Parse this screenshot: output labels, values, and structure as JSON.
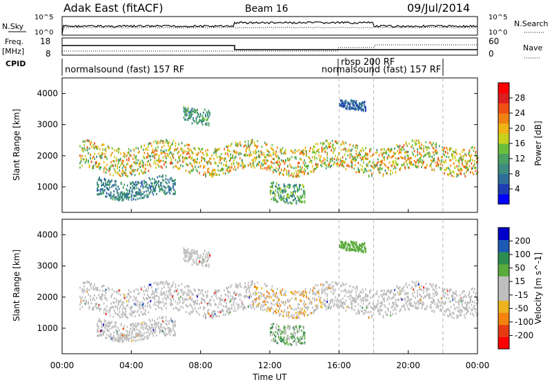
{
  "header": {
    "station": "Adak East (fitACF)",
    "beam": "Beam 16",
    "date": "09/Jul/2014"
  },
  "info_panels": {
    "nsky_label": "N.Sky",
    "nsky_ticks": [
      "10^5",
      "10^0"
    ],
    "nsearch_label": "N.Search",
    "nsearch_ticks": [
      "10^5",
      "10^0"
    ],
    "freq_label": "Freq.",
    "freq_unit": "[MHz]",
    "freq_ticks": [
      "18",
      "8"
    ],
    "nave_label": "Nave",
    "nave_ticks": [
      "60",
      "0"
    ],
    "cpid_label": "CPID",
    "modes": [
      {
        "name": "normalsound (fast) 157 RF",
        "start": "00:00"
      },
      {
        "name": "rbsp 200 RF",
        "start": "16:00"
      },
      {
        "name": "normalsound (fast) 157 RF",
        "start": "18:00"
      }
    ]
  },
  "colors": {
    "power": [
      "#0000ff",
      "#1e3cb4",
      "#2f6e9a",
      "#3c8c82",
      "#4ba064",
      "#6bbf3c",
      "#c8d21e",
      "#f0b414",
      "#f08214",
      "#f05014",
      "#dc1e1e",
      "#ff0000"
    ],
    "velocity": [
      "#ff0000",
      "#e63c14",
      "#f5820f",
      "#ebb41e",
      "#bebebe",
      "#bebebe",
      "#5aaa3c",
      "#2d8c50",
      "#1e5ab4",
      "#0000c8"
    ]
  },
  "chart_data": [
    {
      "type": "heatmap",
      "title": "Power",
      "xlabel": "",
      "ylabel": "Slant Range [km]",
      "xlim": [
        "00:00",
        "24:00"
      ],
      "ylim": [
        180,
        4500
      ],
      "yticks": [
        "1000",
        "2000",
        "3000",
        "4000"
      ],
      "colorbar": {
        "label": "Power [dB]",
        "ticks": [
          "4",
          "8",
          "12",
          "16",
          "20",
          "24",
          "28"
        ],
        "range": [
          0,
          30
        ]
      },
      "echo_bands": [
        {
          "feature": "main band",
          "start": "01:00",
          "end": "24:00",
          "range_km": [
            1500,
            2400
          ],
          "peak_power_db": 24
        },
        {
          "feature": "near band",
          "start": "02:00",
          "end": "06:30",
          "range_km": [
            700,
            1300
          ],
          "peak_power_db": 12
        },
        {
          "feature": "far patch",
          "start": "07:00",
          "end": "08:30",
          "range_km": [
            3100,
            3600
          ],
          "peak_power_db": 14
        },
        {
          "feature": "near patch",
          "start": "12:00",
          "end": "14:00",
          "range_km": [
            600,
            1200
          ],
          "peak_power_db": 16
        },
        {
          "feature": "rbsp patch",
          "start": "16:00",
          "end": "17:30",
          "range_km": [
            3500,
            3800
          ],
          "peak_power_db": 8
        }
      ]
    },
    {
      "type": "heatmap",
      "title": "Velocity",
      "xlabel": "Time UT",
      "ylabel": "Slant Range [km]",
      "xlim": [
        "00:00",
        "24:00"
      ],
      "ylim": [
        180,
        4500
      ],
      "yticks": [
        "1000",
        "2000",
        "3000",
        "4000"
      ],
      "xticks": [
        "00:00",
        "04:00",
        "08:00",
        "12:00",
        "16:00",
        "20:00",
        "00:00"
      ],
      "colorbar": {
        "label": "Velocity [m s^-1]",
        "ticks": [
          "200",
          "100",
          "50",
          "15",
          "-15",
          "-50",
          "-100",
          "-200"
        ],
        "range": [
          -250,
          250
        ]
      }
    }
  ]
}
